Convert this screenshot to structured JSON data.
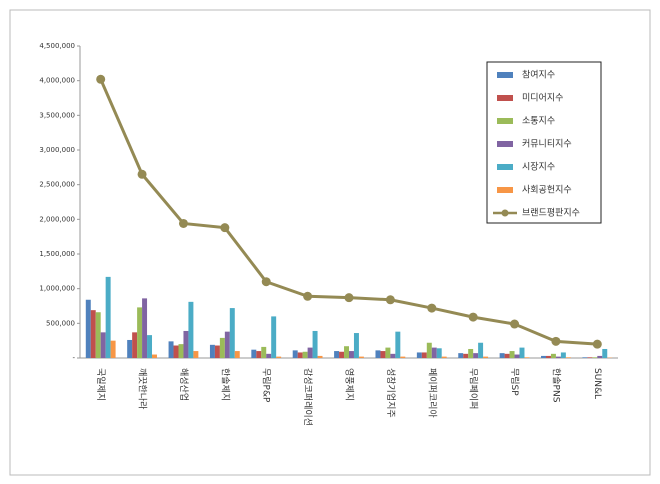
{
  "chart_data": {
    "type": "bar",
    "categories": [
      "국일제지",
      "깨끗한나라",
      "해성산업",
      "한솔제지",
      "무림P&P",
      "감성코퍼레이션",
      "영풍제지",
      "성창기업지주",
      "페이퍼코리아",
      "무림페이퍼",
      "무림SP",
      "한솔PNS",
      "SUN&L"
    ],
    "series": [
      {
        "name": "참여지수",
        "color": "#4f81bd",
        "values": [
          840000,
          260000,
          240000,
          190000,
          120000,
          110000,
          100000,
          110000,
          80000,
          70000,
          70000,
          30000,
          10000
        ]
      },
      {
        "name": "미디어지수",
        "color": "#c0504d",
        "values": [
          690000,
          370000,
          180000,
          180000,
          100000,
          80000,
          90000,
          100000,
          80000,
          60000,
          60000,
          30000,
          10000
        ]
      },
      {
        "name": "소통지수",
        "color": "#9bbb59",
        "values": [
          660000,
          730000,
          200000,
          290000,
          160000,
          90000,
          170000,
          150000,
          220000,
          130000,
          100000,
          60000,
          10000
        ]
      },
      {
        "name": "커뮤니티지수",
        "color": "#8064a2",
        "values": [
          370000,
          860000,
          390000,
          380000,
          60000,
          150000,
          100000,
          60000,
          150000,
          70000,
          50000,
          20000,
          30000
        ]
      },
      {
        "name": "시장지수",
        "color": "#4bacc6",
        "values": [
          1170000,
          330000,
          810000,
          720000,
          600000,
          390000,
          360000,
          380000,
          140000,
          220000,
          150000,
          80000,
          130000
        ]
      },
      {
        "name": "사회공헌지수",
        "color": "#f79646",
        "values": [
          250000,
          50000,
          100000,
          100000,
          20000,
          30000,
          20000,
          20000,
          20000,
          20000,
          10000,
          10000,
          5000
        ]
      },
      {
        "name": "브랜드평판지수",
        "color": "#948a54",
        "type": "line",
        "values": [
          4020000,
          2650000,
          1940000,
          1880000,
          1100000,
          890000,
          870000,
          840000,
          720000,
          590000,
          490000,
          240000,
          200000
        ]
      }
    ],
    "ylim": [
      0,
      4500000
    ],
    "yticks": [
      {
        "value": 0,
        "label": "-"
      },
      {
        "value": 500000,
        "label": "500,000"
      },
      {
        "value": 1000000,
        "label": "1,000,000"
      },
      {
        "value": 1500000,
        "label": "1,500,000"
      },
      {
        "value": 2000000,
        "label": "2,000,000"
      },
      {
        "value": 2500000,
        "label": "2,500,000"
      },
      {
        "value": 3000000,
        "label": "3,000,000"
      },
      {
        "value": 3500000,
        "label": "3,500,000"
      },
      {
        "value": 4000000,
        "label": "4,000,000"
      },
      {
        "value": 4500000,
        "label": "4,500,000"
      }
    ],
    "legend": "upper-right"
  }
}
